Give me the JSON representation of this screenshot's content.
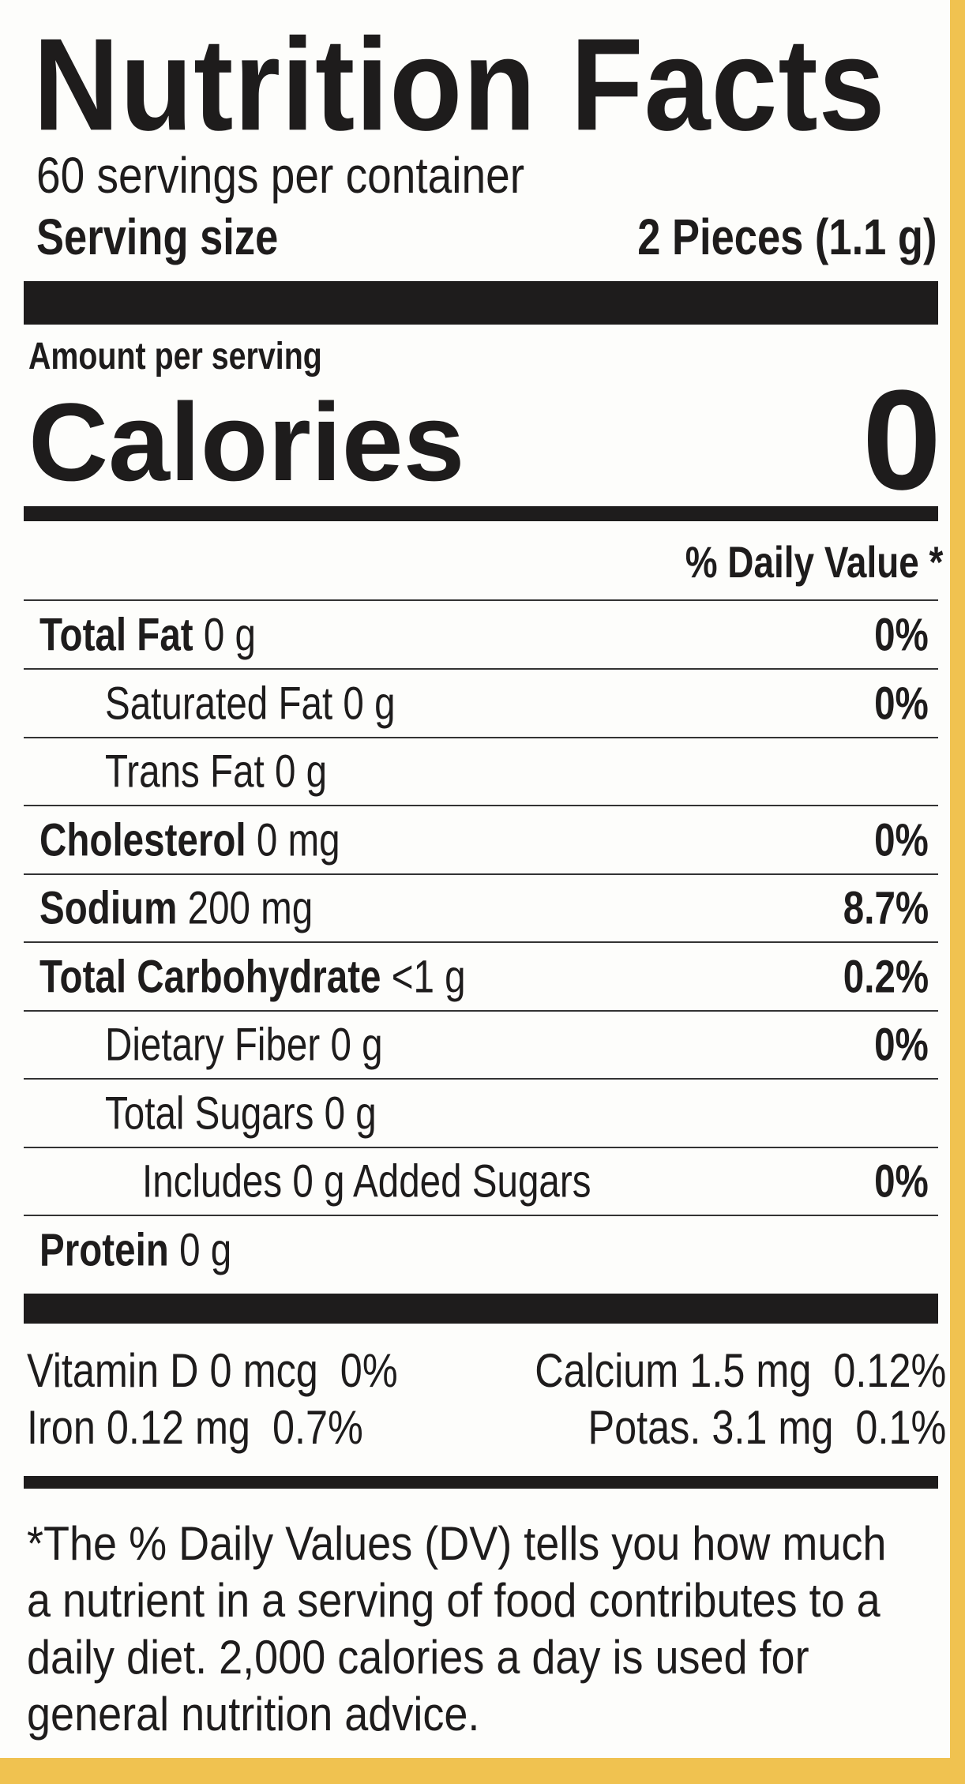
{
  "title": "Nutrition Facts",
  "servings_per_container": "60 servings per container",
  "serving_size": {
    "label": "Serving size",
    "value": "2 Pieces (1.1 g)"
  },
  "amount_per_serving": "Amount per serving",
  "calories": {
    "label": "Calories",
    "value": "0"
  },
  "daily_value_header": "% Daily Value *",
  "nutrients": [
    {
      "name": "Total Fat",
      "amount": "0 g",
      "dv": "0%"
    },
    {
      "name": "Saturated Fat",
      "amount": "0 g",
      "dv": "0%"
    },
    {
      "name": "Trans Fat",
      "amount": "0 g"
    },
    {
      "name": "Cholesterol",
      "amount": "0 mg",
      "dv": "0%"
    },
    {
      "name": "Sodium",
      "amount": "200 mg",
      "dv": "8.7%"
    },
    {
      "name": "Total Carbohydrate",
      "amount": "<1 g",
      "dv": "0.2%"
    },
    {
      "name": "Dietary Fiber",
      "amount": "0 g",
      "dv": "0%"
    },
    {
      "name": "Total Sugars",
      "amount": "0 g"
    },
    {
      "name": "Includes 0 g Added Sugars",
      "dv": "0%"
    },
    {
      "name": "Protein",
      "amount": "0 g"
    }
  ],
  "vitamins": [
    [
      {
        "name": "Vitamin D 0 mcg",
        "dv": "0%"
      },
      {
        "name": "Calcium 1.5 mg",
        "dv": "0.12%"
      }
    ],
    [
      {
        "name": "Iron 0.12 mg",
        "dv": "0.7%"
      },
      {
        "name": "Potas. 3.1 mg",
        "dv": "0.1%"
      }
    ]
  ],
  "footnote": [
    "*The % Daily Values (DV) tells you how much",
    "a nutrient in a serving of food contributes to a",
    "daily diet. 2,000 calories a day is used for",
    "general nutrition advice."
  ]
}
